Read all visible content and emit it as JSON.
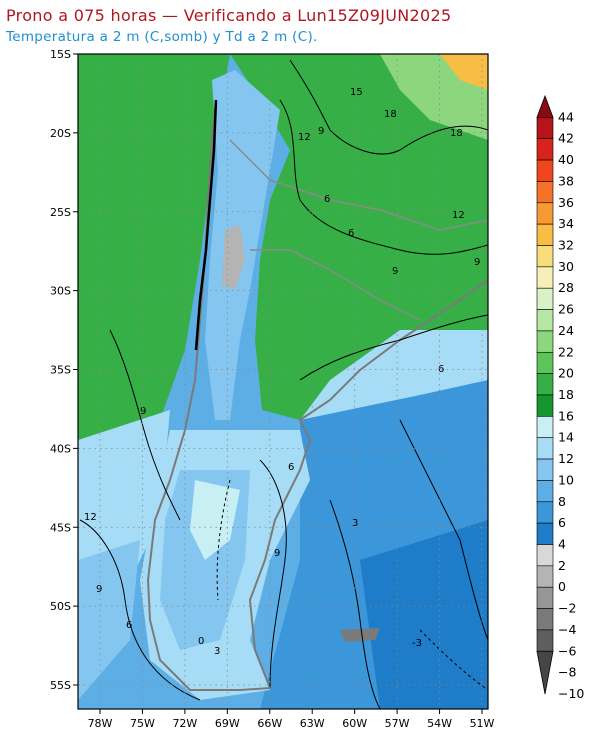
{
  "header": {
    "title": "Prono a 075 horas — Verificando a Lun15Z09JUN2025",
    "subtitle": "Temperatura a 2 m (C,somb) y Td a 2 m (C)."
  },
  "map": {
    "lat_labels": [
      "15S",
      "20S",
      "25S",
      "30S",
      "35S",
      "40S",
      "45S",
      "50S",
      "55S"
    ],
    "lon_labels": [
      "78W",
      "75W",
      "72W",
      "69W",
      "66W",
      "63W",
      "60W",
      "57W",
      "54W",
      "51W"
    ],
    "grid": "dotted",
    "contour_labels": [
      "15",
      "18",
      "18",
      "12",
      "9",
      "6",
      "12",
      "9",
      "9",
      "6",
      "6",
      "9",
      "12",
      "6",
      "9",
      "3",
      "9",
      "6",
      "0",
      "3",
      "-3"
    ]
  },
  "colorbar": {
    "labels": [
      "44",
      "42",
      "40",
      "38",
      "36",
      "34",
      "32",
      "30",
      "28",
      "26",
      "24",
      "22",
      "20",
      "18",
      "16",
      "14",
      "12",
      "10",
      "8",
      "6",
      "4",
      "2",
      "0",
      "−2",
      "−4",
      "−6",
      "−8",
      "−10"
    ],
    "colors": [
      "#8b0a12",
      "#b4141a",
      "#d8231c",
      "#f0461f",
      "#f4722a",
      "#f89a32",
      "#f8bd45",
      "#f8de7a",
      "#f6f0b8",
      "#d8f2c6",
      "#b5e8a4",
      "#8cd67d",
      "#5cc55a",
      "#36b046",
      "#16962e",
      "#c8f0f4",
      "#a6dcf6",
      "#84c6f0",
      "#5eaee6",
      "#3c96da",
      "#1e7cc8",
      "#d8d8d8",
      "#b4b4b4",
      "#969696",
      "#7a7a7a",
      "#5e5e5e",
      "#464646"
    ]
  }
}
